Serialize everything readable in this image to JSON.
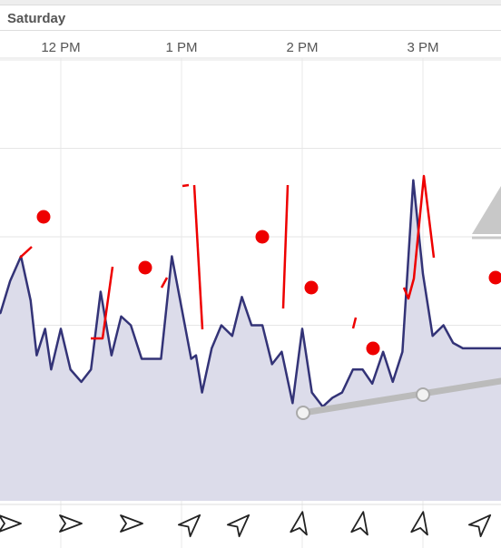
{
  "day_label": "Saturday",
  "chart_data": {
    "type": "line",
    "time_ticks": [
      "12 PM",
      "1 PM",
      "2 PM",
      "3 PM"
    ],
    "series": [
      {
        "color": "#333377",
        "x": [
          11.4,
          11.5,
          11.58,
          11.67,
          11.75,
          11.8,
          11.87,
          11.92,
          12.0,
          12.08,
          12.17,
          12.25,
          12.33,
          12.42,
          12.5,
          12.58,
          12.67,
          12.75,
          12.83,
          12.92,
          13.0,
          13.08,
          13.12,
          13.17,
          13.25,
          13.33,
          13.42,
          13.5,
          13.58,
          13.67,
          13.75,
          13.83,
          13.92,
          14.0,
          14.08,
          14.17,
          14.25,
          14.33,
          14.42,
          14.5,
          14.58,
          14.67,
          14.75,
          14.83,
          14.92,
          15.0,
          15.08,
          15.17,
          15.25,
          15.33,
          15.42,
          15.5,
          15.58,
          15.67
        ],
        "values": [
          5.3,
          5.7,
          7.5,
          8.9,
          6.4,
          3.3,
          4.8,
          2.5,
          4.8,
          2.5,
          1.8,
          2.5,
          6.9,
          3.3,
          5.5,
          5.0,
          3.1,
          3.1,
          3.1,
          8.9,
          6.0,
          3.1,
          3.3,
          1.2,
          3.7,
          5.0,
          4.4,
          6.6,
          5.0,
          5.0,
          2.8,
          3.5,
          0.6,
          4.8,
          1.2,
          0.4,
          0.9,
          1.2,
          2.5,
          2.5,
          1.7,
          3.5,
          1.8,
          3.5,
          13.2,
          7.9,
          4.4,
          5.0,
          4.0,
          3.7,
          3.7,
          3.7,
          3.7,
          3.7
        ]
      },
      {
        "color": "#ff0000",
        "x": [
          11.5,
          11.58,
          11.92,
          12.0,
          12.08,
          12.17,
          12.25,
          12.33,
          12.42,
          12.5,
          12.58,
          12.67,
          12.75,
          12.83,
          12.92,
          13.0,
          13.08,
          13.17,
          13.25,
          13.33,
          13.42,
          13.5,
          13.58,
          13.67,
          13.75,
          13.83,
          13.92,
          14.0,
          14.08,
          14.17,
          14.25,
          14.33,
          14.42,
          14.5,
          14.58,
          14.67,
          14.75,
          14.83,
          14.92,
          15.0,
          15.08,
          15.17,
          15.25,
          15.33
        ],
        "values": [
          null,
          null,
          null,
          null,
          7.2,
          7.2,
          12.9,
          20.4,
          null,
          null,
          null,
          null,
          null,
          null,
          null,
          null,
          null,
          23.5,
          24.0,
          25.5,
          null,
          null,
          null,
          null,
          null,
          null,
          null,
          13.0,
          29.5,
          null,
          null,
          null,
          null,
          null,
          null,
          null,
          null,
          null,
          null,
          null,
          null,
          null,
          null,
          null
        ]
      }
    ],
    "y_gridlines": [
      0,
      5,
      10,
      15,
      20,
      25
    ],
    "xlabel": "",
    "ylabel": "",
    "legend": "none"
  },
  "wind_arrows": {
    "times": [
      "11.5",
      "12.0",
      "12.5",
      "13.0",
      "13.5",
      "14.0",
      "14.5",
      "15.0",
      "15.5"
    ],
    "directions_deg": [
      90,
      90,
      90,
      45,
      45,
      10,
      10,
      10,
      45
    ]
  }
}
